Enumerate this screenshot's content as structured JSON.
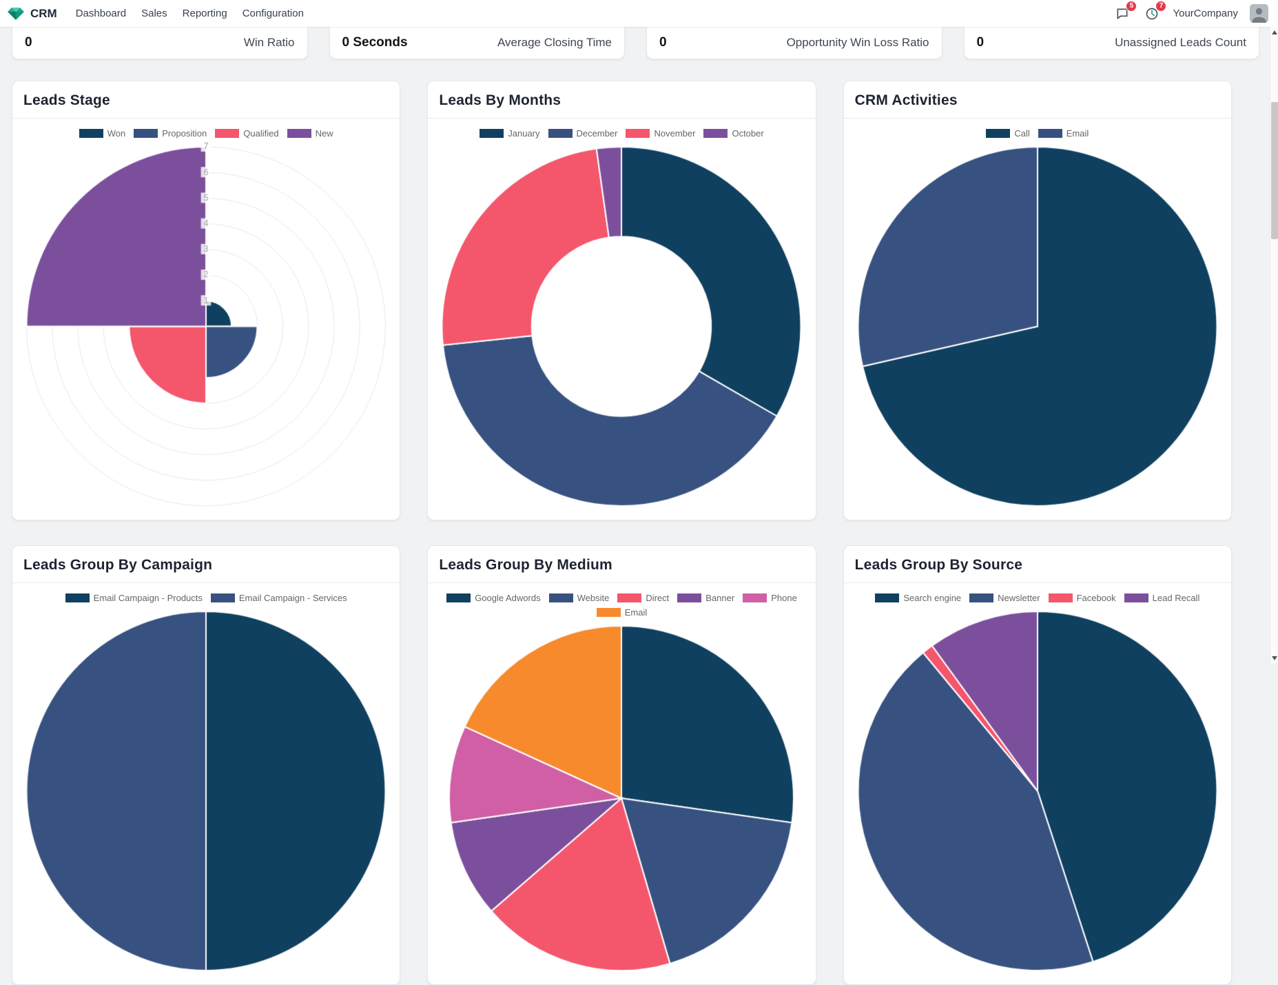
{
  "topbar": {
    "app_name": "CRM",
    "menu": [
      "Dashboard",
      "Sales",
      "Reporting",
      "Configuration"
    ],
    "messages_badge": "5",
    "activities_badge": "7",
    "company": "YourCompany",
    "icons": {
      "app_logo": "gem-icon",
      "messages": "chat-bubble-icon",
      "activities": "clock-icon",
      "avatar": "user-avatar"
    }
  },
  "kpis": [
    {
      "value": "0",
      "label": "Win Ratio"
    },
    {
      "value": "0 Seconds",
      "label": "Average Closing Time"
    },
    {
      "value": "0",
      "label": "Opportunity Win Loss Ratio"
    },
    {
      "value": "0",
      "label": "Unassigned Leads Count"
    }
  ],
  "colors": {
    "badge_red": "#e23b4e",
    "accent_teal": "#17a28c",
    "chart_palette": {
      "dark_navy": "#10405f",
      "navy": "#375280",
      "red": "#f4566b",
      "purple": "#7c4f9d",
      "magenta": "#d05fa6",
      "orange": "#f78a2d"
    }
  },
  "chart_data": [
    {
      "id": "leads-stage",
      "title": "Leads Stage",
      "type": "polarArea",
      "labels": [
        "Won",
        "Proposition",
        "Qualified",
        "New"
      ],
      "values": [
        1,
        2,
        3,
        7
      ],
      "colors": [
        "dark_navy",
        "navy",
        "red",
        "purple"
      ],
      "max_tick": 7,
      "legend_position": "top",
      "grid": true
    },
    {
      "id": "leads-by-months",
      "title": "Leads By Months",
      "type": "doughnut",
      "labels": [
        "January",
        "December",
        "November",
        "October"
      ],
      "values": [
        15,
        18,
        11,
        1
      ],
      "colors": [
        "dark_navy",
        "navy",
        "red",
        "purple"
      ],
      "inner_radius_ratio": 0.5,
      "legend_position": "top"
    },
    {
      "id": "crm-activities",
      "title": "CRM Activities",
      "type": "pie",
      "labels": [
        "Call",
        "Email"
      ],
      "values": [
        5,
        2
      ],
      "colors": [
        "dark_navy",
        "navy"
      ],
      "legend_position": "top"
    },
    {
      "id": "leads-group-by-campaign",
      "title": "Leads Group By Campaign",
      "type": "pie",
      "labels": [
        "Email Campaign - Products",
        "Email Campaign - Services"
      ],
      "values": [
        1,
        1
      ],
      "colors": [
        "dark_navy",
        "navy"
      ],
      "legend_position": "top"
    },
    {
      "id": "leads-group-by-medium",
      "title": "Leads Group By Medium",
      "type": "pie",
      "labels": [
        "Google Adwords",
        "Website",
        "Direct",
        "Banner",
        "Phone",
        "Email"
      ],
      "values": [
        3,
        2,
        2,
        1,
        1,
        2
      ],
      "colors": [
        "dark_navy",
        "navy",
        "red",
        "purple",
        "magenta",
        "orange"
      ],
      "legend_position": "top"
    },
    {
      "id": "leads-group-by-source",
      "title": "Leads Group By Source",
      "type": "pie",
      "labels": [
        "Search engine",
        "Newsletter",
        "Facebook",
        "Lead Recall"
      ],
      "values": [
        45,
        44,
        1,
        10
      ],
      "colors": [
        "dark_navy",
        "navy",
        "red",
        "purple"
      ],
      "legend_position": "top"
    }
  ]
}
